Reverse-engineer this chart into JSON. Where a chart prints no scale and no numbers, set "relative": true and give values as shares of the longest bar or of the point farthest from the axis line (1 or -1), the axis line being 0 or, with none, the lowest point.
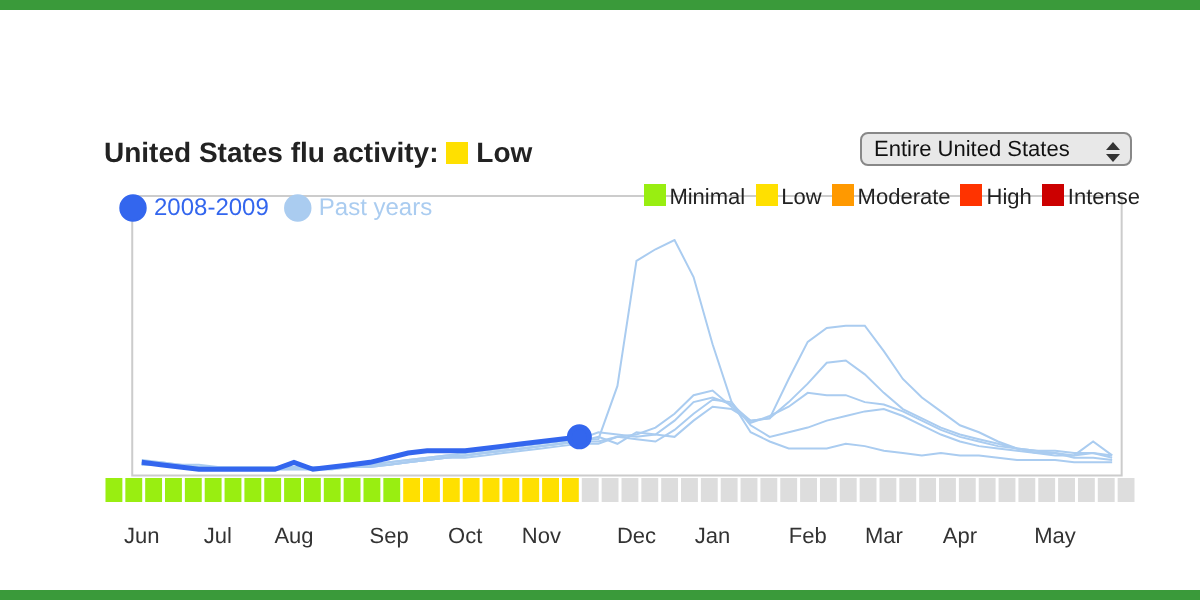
{
  "chart_data": [
    {
      "type": "line",
      "title": "United States flu activity: Low",
      "relative": true,
      "legend": "top left",
      "annotations": [
        "Entire United States"
      ],
      "categories": [
        "Jun",
        null,
        null,
        null,
        "Jul",
        null,
        null,
        null,
        "Aug",
        null,
        null,
        null,
        null,
        "Sep",
        null,
        null,
        null,
        "Oct",
        null,
        null,
        null,
        "Nov",
        null,
        null,
        null,
        null,
        "Dec",
        null,
        null,
        null,
        "Jan",
        null,
        null,
        null,
        null,
        "Feb",
        null,
        null,
        null,
        "Mar",
        null,
        null,
        null,
        "Apr",
        null,
        null,
        null,
        null,
        "May",
        null,
        null,
        null
      ],
      "series": [
        {
          "name": "Past years",
          "color": "#aaccf0",
          "values": [
            0.05,
            0.04,
            0.03,
            0.03,
            0.02,
            0.02,
            0.02,
            0.02,
            0.02,
            0.02,
            0.02,
            0.03,
            0.03,
            0.04,
            0.05,
            0.06,
            0.07,
            0.08,
            0.09,
            0.1,
            0.11,
            0.12,
            0.13,
            0.14,
            0.14,
            0.37,
            0.91,
            0.96,
            1.0,
            0.84,
            0.55,
            0.3,
            0.17,
            0.13,
            0.1,
            0.1,
            0.1,
            0.12,
            0.11,
            0.09,
            0.08,
            0.07,
            0.08,
            0.07,
            0.07,
            0.06,
            0.05,
            0.05,
            0.05,
            0.04,
            0.04,
            0.04
          ]
        },
        {
          "color": "#aaccf0",
          "values": [
            0.04,
            0.04,
            0.03,
            0.02,
            0.02,
            0.01,
            0.01,
            0.02,
            0.02,
            0.01,
            0.02,
            0.02,
            0.03,
            0.04,
            0.05,
            0.06,
            0.07,
            0.07,
            0.08,
            0.09,
            0.1,
            0.11,
            0.12,
            0.13,
            0.15,
            0.12,
            0.17,
            0.16,
            0.15,
            0.22,
            0.28,
            0.27,
            0.22,
            0.23,
            0.4,
            0.56,
            0.62,
            0.63,
            0.63,
            0.52,
            0.4,
            0.32,
            0.26,
            0.2,
            0.17,
            0.13,
            0.1,
            0.09,
            0.09,
            0.08,
            0.08,
            0.06
          ]
        },
        {
          "color": "#aaccf0",
          "values": [
            0.03,
            0.03,
            0.02,
            0.02,
            0.01,
            0.01,
            0.01,
            0.01,
            0.01,
            0.01,
            0.01,
            0.02,
            0.02,
            0.03,
            0.04,
            0.05,
            0.06,
            0.07,
            0.08,
            0.09,
            0.1,
            0.11,
            0.12,
            0.14,
            0.17,
            0.16,
            0.15,
            0.16,
            0.22,
            0.3,
            0.32,
            0.29,
            0.22,
            0.23,
            0.3,
            0.38,
            0.47,
            0.48,
            0.42,
            0.34,
            0.27,
            0.23,
            0.19,
            0.16,
            0.14,
            0.12,
            0.1,
            0.09,
            0.08,
            0.07,
            0.08,
            0.07
          ]
        },
        {
          "color": "#aaccf0",
          "values": [
            0.04,
            0.03,
            0.03,
            0.02,
            0.02,
            0.02,
            0.01,
            0.01,
            0.01,
            0.01,
            0.02,
            0.02,
            0.03,
            0.03,
            0.04,
            0.05,
            0.06,
            0.07,
            0.08,
            0.09,
            0.1,
            0.11,
            0.12,
            0.13,
            0.13,
            0.15,
            0.16,
            0.19,
            0.25,
            0.33,
            0.35,
            0.28,
            0.21,
            0.24,
            0.28,
            0.34,
            0.33,
            0.33,
            0.3,
            0.29,
            0.26,
            0.22,
            0.18,
            0.15,
            0.13,
            0.11,
            0.1,
            0.08,
            0.07,
            0.07,
            0.13,
            0.07
          ]
        },
        {
          "color": "#aaccf0",
          "values": [
            0.03,
            0.03,
            0.02,
            0.02,
            0.02,
            0.01,
            0.01,
            0.01,
            0.01,
            0.01,
            0.01,
            0.02,
            0.02,
            0.03,
            0.04,
            0.05,
            0.06,
            0.06,
            0.07,
            0.08,
            0.09,
            0.1,
            0.11,
            0.12,
            0.12,
            0.15,
            0.14,
            0.13,
            0.18,
            0.25,
            0.31,
            0.3,
            0.2,
            0.15,
            0.17,
            0.19,
            0.22,
            0.24,
            0.26,
            0.27,
            0.24,
            0.2,
            0.16,
            0.13,
            0.11,
            0.1,
            0.09,
            0.08,
            0.08,
            0.06,
            0.06,
            0.05
          ]
        },
        {
          "name": "2008-2009",
          "color": "#3366ee",
          "values": [
            0.04,
            0.03,
            0.02,
            0.01,
            0.01,
            0.01,
            0.01,
            0.01,
            0.04,
            0.01,
            0.02,
            0.03,
            0.04,
            0.06,
            0.08,
            0.09,
            0.09,
            0.09,
            0.1,
            0.11,
            0.12,
            0.13,
            0.14,
            0.15,
            null,
            null,
            null,
            null,
            null,
            null,
            null,
            null,
            null,
            null,
            null,
            null,
            null,
            null,
            null,
            null,
            null,
            null,
            null,
            null,
            null,
            null,
            null,
            null,
            null,
            null,
            null,
            null
          ]
        }
      ]
    },
    {
      "type": "bar",
      "relative": true,
      "stacked": true,
      "legend": "top right",
      "categories": [
        null,
        null,
        null,
        null,
        null,
        null,
        null,
        null,
        null,
        null,
        null,
        null,
        null,
        null,
        null,
        null,
        null,
        null,
        null,
        null,
        null,
        null,
        null,
        null,
        null,
        null,
        null,
        null,
        null,
        null,
        null,
        null,
        null,
        null,
        null,
        null,
        null,
        null,
        null,
        null,
        null,
        null,
        null,
        null,
        null,
        null,
        null,
        null,
        null,
        null,
        null,
        null
      ],
      "series": [
        {
          "name": "Minimal",
          "color": "#99ee11",
          "values": [
            1,
            1,
            1,
            1,
            1,
            1,
            1,
            1,
            1,
            1,
            1,
            1,
            1,
            1,
            1,
            null,
            null,
            null,
            null,
            null,
            null,
            null,
            null,
            null,
            null,
            null,
            null,
            null,
            null,
            null,
            null,
            null,
            null,
            null,
            null,
            null,
            null,
            null,
            null,
            null,
            null,
            null,
            null,
            null,
            null,
            null,
            null,
            null,
            null,
            null,
            null,
            null
          ]
        },
        {
          "name": "Low",
          "color": "#ffe000",
          "values": [
            null,
            null,
            null,
            null,
            null,
            null,
            null,
            null,
            null,
            null,
            null,
            null,
            null,
            null,
            null,
            1,
            1,
            1,
            1,
            1,
            1,
            1,
            1,
            1,
            null,
            null,
            null,
            null,
            null,
            null,
            null,
            null,
            null,
            null,
            null,
            null,
            null,
            null,
            null,
            null,
            null,
            null,
            null,
            null,
            null,
            null,
            null,
            null,
            null,
            null,
            null,
            null
          ]
        },
        {
          "name": "Moderate",
          "color": "#ff9900",
          "values": [
            null,
            null,
            null,
            null,
            null,
            null,
            null,
            null,
            null,
            null,
            null,
            null,
            null,
            null,
            null,
            null,
            null,
            null,
            null,
            null,
            null,
            null,
            null,
            null,
            null,
            null,
            null,
            null,
            null,
            null,
            null,
            null,
            null,
            null,
            null,
            null,
            null,
            null,
            null,
            null,
            null,
            null,
            null,
            null,
            null,
            null,
            null,
            null,
            null,
            null,
            null,
            null
          ]
        },
        {
          "name": "High",
          "color": "#ff3300",
          "values": [
            null,
            null,
            null,
            null,
            null,
            null,
            null,
            null,
            null,
            null,
            null,
            null,
            null,
            null,
            null,
            null,
            null,
            null,
            null,
            null,
            null,
            null,
            null,
            null,
            null,
            null,
            null,
            null,
            null,
            null,
            null,
            null,
            null,
            null,
            null,
            null,
            null,
            null,
            null,
            null,
            null,
            null,
            null,
            null,
            null,
            null,
            null,
            null,
            null,
            null,
            null,
            null
          ]
        },
        {
          "name": "Intense",
          "color": "#cc0000",
          "values": [
            null,
            null,
            null,
            null,
            null,
            null,
            null,
            null,
            null,
            null,
            null,
            null,
            null,
            null,
            null,
            null,
            null,
            null,
            null,
            null,
            null,
            null,
            null,
            null,
            null,
            null,
            null,
            null,
            null,
            null,
            null,
            null,
            null,
            null,
            null,
            null,
            null,
            null,
            null,
            null,
            null,
            null,
            null,
            null,
            null,
            null,
            null,
            null,
            null,
            null,
            null,
            null
          ]
        },
        {
          "color": "#dddddd",
          "values": [
            null,
            null,
            null,
            null,
            null,
            null,
            null,
            null,
            null,
            null,
            null,
            null,
            null,
            null,
            null,
            null,
            null,
            null,
            null,
            null,
            null,
            null,
            null,
            null,
            1,
            1,
            1,
            1,
            1,
            1,
            1,
            1,
            1,
            1,
            1,
            1,
            1,
            1,
            1,
            1,
            1,
            1,
            1,
            1,
            1,
            1,
            1,
            1,
            1,
            1,
            1,
            1
          ]
        }
      ]
    }
  ]
}
